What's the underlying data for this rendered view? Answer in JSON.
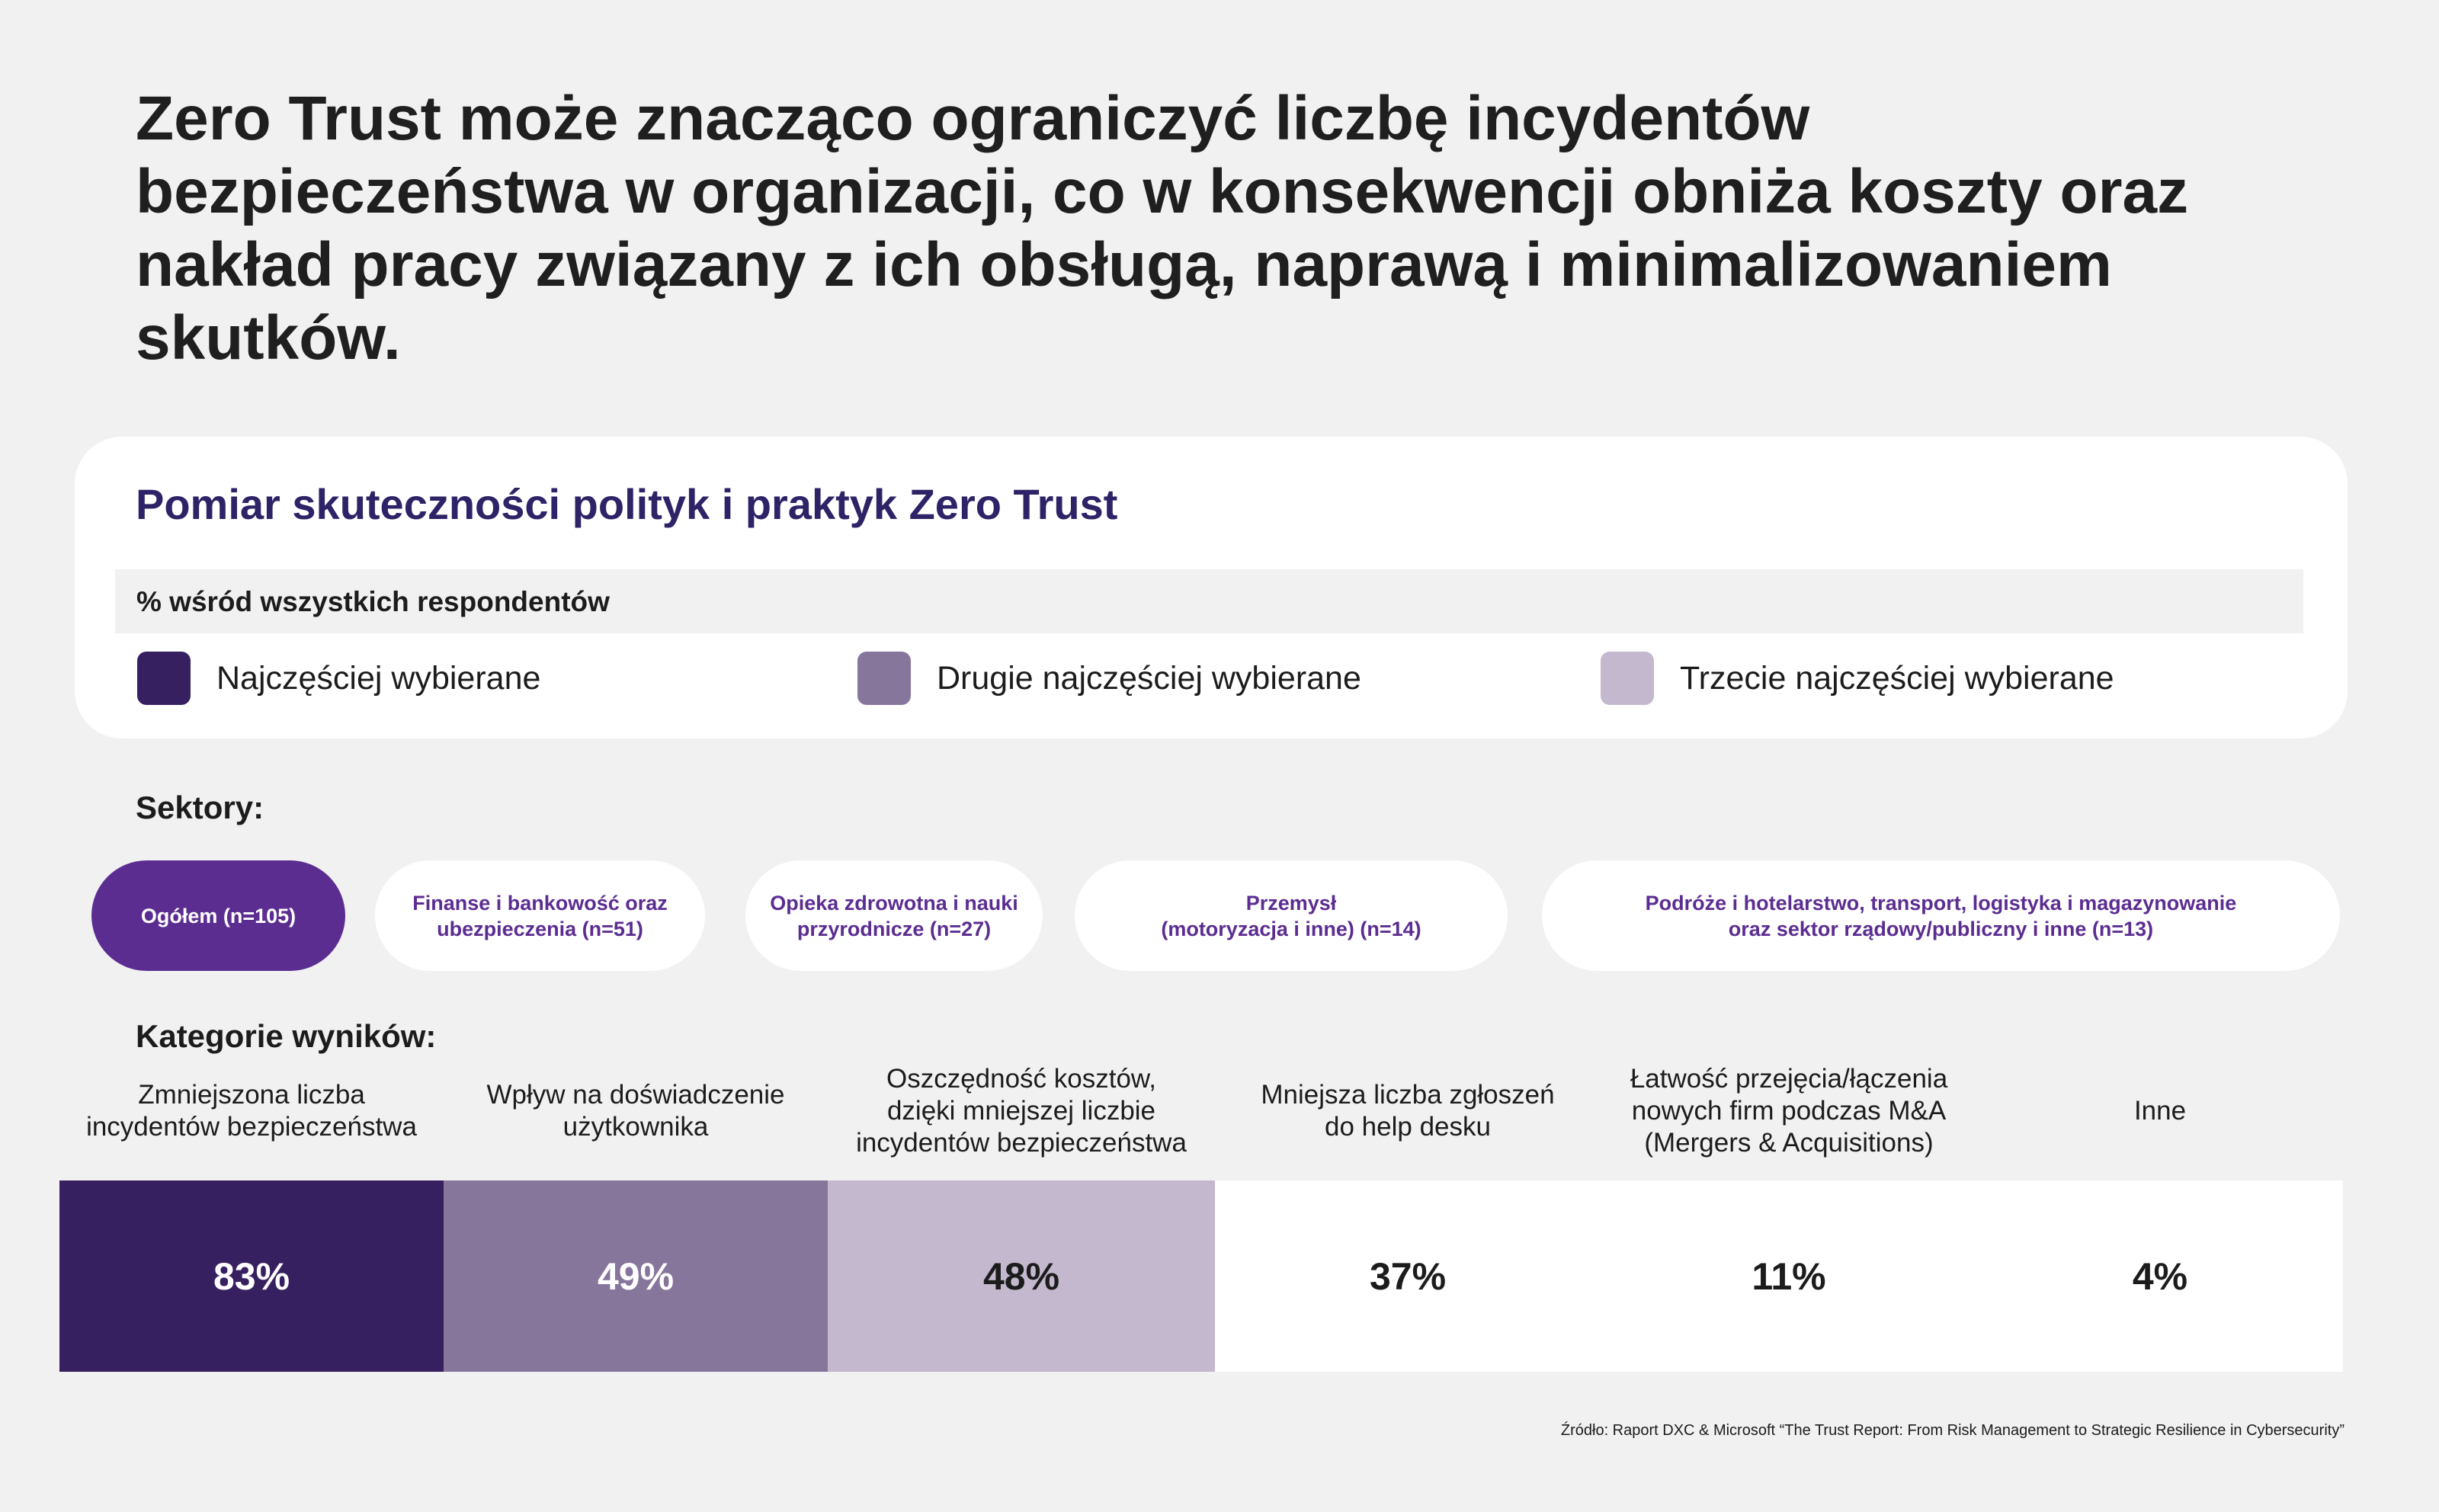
{
  "headline": "Zero Trust może znacząco ograniczyć liczbę incydentów bezpieczeństwa w organizacji, co w konsekwencji obniża koszty oraz nakład pracy związany z ich obsługą, naprawą i minimalizowaniem skutków.",
  "card": {
    "title": "Pomiar skuteczności polityk i praktyk Zero Trust",
    "subtitle": "% wśród wszystkich respondentów",
    "legend": [
      {
        "label": "Najczęściej wybierane",
        "color": "#372060"
      },
      {
        "label": "Drugie najczęściej wybierane",
        "color": "#87769c"
      },
      {
        "label": "Trzecie najczęściej wybierane",
        "color": "#c4b8cf"
      }
    ]
  },
  "sectors": {
    "label": "Sektory:",
    "items": [
      {
        "label": "Ogółem (n=105)",
        "active": true
      },
      {
        "label": "Finanse i bankowość oraz\nubezpieczenia (n=51)",
        "active": false
      },
      {
        "label": "Opieka zdrowotna i nauki\nprzyrodnicze (n=27)",
        "active": false
      },
      {
        "label": "Przemysł\n(motoryzacja i inne) (n=14)",
        "active": false
      },
      {
        "label": "Podróże i hotelarstwo, transport, logistyka i magazynowanie\noraz sektor rządowy/publiczny i inne (n=13)",
        "active": false
      }
    ]
  },
  "chart_data": {
    "type": "bar",
    "title": "Kategorie wyników:",
    "categories": [
      "Zmniejszona liczba\nincydentów bezpieczeństwa",
      "Wpływ na doświadczenie\nużytkownika",
      "Oszczędność kosztów,\ndzięki mniejszej liczbie\nincydentów bezpieczeństwa",
      "Mniejsza liczba zgłoszeń\ndo help desku",
      "Łatwość przejęcia/łączenia\nnowych firm podczas M&A\n(Mergers & Acquisitions)",
      "Inne"
    ],
    "values": [
      83,
      49,
      48,
      37,
      11,
      4
    ],
    "labels": [
      "83%",
      "49%",
      "48%",
      "37%",
      "11%",
      "4%"
    ],
    "colors": [
      "#372060",
      "#87769c",
      "#c4b8cf",
      "#ffffff",
      "#ffffff",
      "#ffffff"
    ],
    "text_colors": [
      "#ffffff",
      "#ffffff",
      "#1c1c1c",
      "#1c1c1c",
      "#1c1c1c",
      "#1c1c1c"
    ]
  },
  "source": "Źródło: Raport DXC & Microsoft “The Trust Report: From Risk Management to Strategic Resilience in Cybersecurity”"
}
